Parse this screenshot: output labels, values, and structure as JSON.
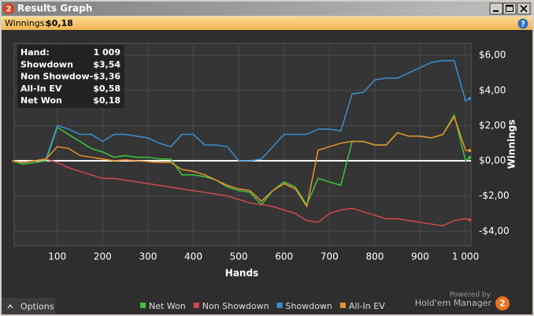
{
  "window": {
    "title": "Results Graph",
    "icon": "2"
  },
  "toolbar": {
    "label": "Winnings:",
    "value": "$0,18",
    "help": "?"
  },
  "stats": {
    "rows": [
      [
        "Hand:",
        "1 009"
      ],
      [
        "Showdown",
        "$3,54"
      ],
      [
        "Non Showdow",
        "-$3,36"
      ],
      [
        "All-In EV",
        "$0,58"
      ],
      [
        "Net Won",
        "$0,18"
      ]
    ]
  },
  "chart_data": {
    "type": "line",
    "x_label": "Hands",
    "y_label": "Winnings",
    "x": [
      0,
      25,
      50,
      75,
      100,
      125,
      150,
      175,
      200,
      225,
      250,
      275,
      300,
      325,
      350,
      375,
      400,
      425,
      450,
      475,
      500,
      525,
      550,
      575,
      600,
      625,
      650,
      675,
      700,
      725,
      750,
      775,
      800,
      825,
      850,
      875,
      900,
      925,
      950,
      975,
      1000,
      1009
    ],
    "series": [
      {
        "name": "Net Won",
        "color": "#3ec43e",
        "values": [
          0,
          -0.2,
          -0.1,
          0,
          1.9,
          1.5,
          1.1,
          0.7,
          0.5,
          0.2,
          0.3,
          0.2,
          0.2,
          0.1,
          0.1,
          -0.8,
          -0.8,
          -0.9,
          -1.1,
          -1.5,
          -1.7,
          -1.8,
          -2.5,
          -1.7,
          -1.2,
          -1.5,
          -2.5,
          -1.0,
          -1.2,
          -1.4,
          1.1,
          1.1,
          0.9,
          0.9,
          1.6,
          1.4,
          1.4,
          1.3,
          1.5,
          2.6,
          0.0,
          0.18
        ]
      },
      {
        "name": "Non Showdown",
        "color": "#d04848",
        "values": [
          0,
          -0.1,
          0,
          0.1,
          -0.1,
          -0.4,
          -0.6,
          -0.8,
          -1.0,
          -1.0,
          -1.1,
          -1.2,
          -1.3,
          -1.4,
          -1.5,
          -1.6,
          -1.7,
          -1.8,
          -1.9,
          -2.0,
          -2.2,
          -2.4,
          -2.5,
          -2.6,
          -2.8,
          -3.0,
          -3.4,
          -3.5,
          -3.0,
          -2.8,
          -2.7,
          -2.9,
          -3.1,
          -3.3,
          -3.3,
          -3.4,
          -3.5,
          -3.6,
          -3.7,
          -3.4,
          -3.3,
          -3.36
        ]
      },
      {
        "name": "Showdown",
        "color": "#3a8fd0",
        "values": [
          0,
          -0.1,
          0,
          0.1,
          2.0,
          1.8,
          1.5,
          1.5,
          1.1,
          1.5,
          1.5,
          1.4,
          1.3,
          1.0,
          0.8,
          1.5,
          1.5,
          0.9,
          0.9,
          0.8,
          0,
          0,
          0.1,
          0.8,
          1.5,
          1.5,
          1.5,
          1.8,
          1.8,
          1.7,
          3.8,
          3.9,
          4.6,
          4.7,
          4.7,
          5.0,
          5.3,
          5.6,
          5.7,
          5.7,
          3.4,
          3.54
        ]
      },
      {
        "name": "All-In EV",
        "color": "#e8932b",
        "values": [
          0,
          -0.1,
          0,
          0.1,
          0.8,
          0.7,
          0.3,
          0.2,
          0.1,
          0,
          0.05,
          0,
          -0.05,
          -0.1,
          -0.1,
          -0.5,
          -0.6,
          -0.8,
          -1.1,
          -1.4,
          -1.6,
          -1.7,
          -2.3,
          -1.7,
          -1.3,
          -1.6,
          -2.6,
          0.6,
          0.8,
          1.0,
          1.1,
          1.1,
          0.9,
          0.9,
          1.6,
          1.4,
          1.4,
          1.3,
          1.5,
          2.5,
          0.6,
          0.58
        ]
      }
    ],
    "xlim": [
      5,
      1012
    ],
    "ylim": [
      -4.84,
      6.68
    ],
    "xticks": [
      100,
      200,
      300,
      400,
      500,
      600,
      700,
      800,
      900,
      {
        "value": 1000,
        "label": "1 000"
      }
    ],
    "yticks": [
      {
        "value": 6,
        "label": "$6,00"
      },
      {
        "value": 4,
        "label": "$4,00"
      },
      {
        "value": 2,
        "label": "$2,00"
      },
      {
        "value": 0,
        "label": "$0,00"
      },
      {
        "value": -2,
        "label": "-$2,00"
      },
      {
        "value": -4,
        "label": "-$4,00"
      }
    ],
    "grid": true
  },
  "footer": {
    "options": "Options",
    "powered_by": "Powered by",
    "brand": "Hold'em Manager",
    "brand_icon": "2"
  }
}
